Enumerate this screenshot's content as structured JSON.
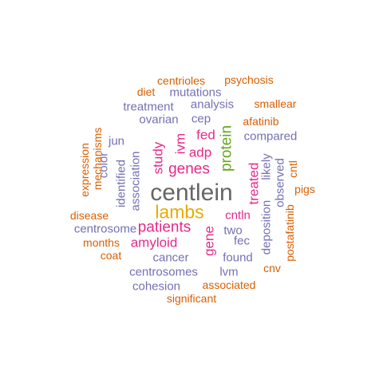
{
  "palette": {
    "orange": "#D95F02",
    "purple": "#7570B3",
    "magenta": "#E7298A",
    "green": "#66A61E",
    "gold": "#E6AB02",
    "gray": "#666666"
  },
  "words": [
    {
      "text": "centlein",
      "freq_rank": 1,
      "color": "gray"
    },
    {
      "text": "lambs",
      "freq_rank": 2,
      "color": "gold"
    },
    {
      "text": "patients",
      "freq_rank": 3,
      "color": "magenta"
    },
    {
      "text": "protein",
      "freq_rank": 3,
      "color": "green"
    },
    {
      "text": "genes",
      "freq_rank": 3,
      "color": "magenta"
    },
    {
      "text": "amyloid",
      "freq_rank": 4,
      "color": "magenta"
    },
    {
      "text": "treated",
      "freq_rank": 4,
      "color": "magenta"
    },
    {
      "text": "adp",
      "freq_rank": 4,
      "color": "magenta"
    },
    {
      "text": "fed",
      "freq_rank": 4,
      "color": "magenta"
    },
    {
      "text": "gene",
      "freq_rank": 4,
      "color": "magenta"
    },
    {
      "text": "study",
      "freq_rank": 4,
      "color": "magenta"
    },
    {
      "text": "ivm",
      "freq_rank": 4,
      "color": "magenta"
    },
    {
      "text": "cntln",
      "freq_rank": 4,
      "color": "magenta"
    },
    {
      "text": "association",
      "freq_rank": 5,
      "color": "purple"
    },
    {
      "text": "identified",
      "freq_rank": 5,
      "color": "purple"
    },
    {
      "text": "deposition",
      "freq_rank": 5,
      "color": "purple"
    },
    {
      "text": "centrosomes",
      "freq_rank": 5,
      "color": "purple"
    },
    {
      "text": "cohesion",
      "freq_rank": 5,
      "color": "purple"
    },
    {
      "text": "centrosome",
      "freq_rank": 5,
      "color": "purple"
    },
    {
      "text": "cancer",
      "freq_rank": 5,
      "color": "purple"
    },
    {
      "text": "found",
      "freq_rank": 5,
      "color": "purple"
    },
    {
      "text": "lvm",
      "freq_rank": 5,
      "color": "purple"
    },
    {
      "text": "two",
      "freq_rank": 5,
      "color": "purple"
    },
    {
      "text": "fec",
      "freq_rank": 5,
      "color": "purple"
    },
    {
      "text": "compared",
      "freq_rank": 5,
      "color": "purple"
    },
    {
      "text": "observed",
      "freq_rank": 5,
      "color": "purple"
    },
    {
      "text": "likely",
      "freq_rank": 5,
      "color": "purple"
    },
    {
      "text": "jun",
      "freq_rank": 5,
      "color": "purple"
    },
    {
      "text": "color",
      "freq_rank": 5,
      "color": "purple"
    },
    {
      "text": "cep",
      "freq_rank": 5,
      "color": "purple"
    },
    {
      "text": "ovarian",
      "freq_rank": 5,
      "color": "purple"
    },
    {
      "text": "treatment",
      "freq_rank": 5,
      "color": "purple"
    },
    {
      "text": "analysis",
      "freq_rank": 5,
      "color": "purple"
    },
    {
      "text": "mutations",
      "freq_rank": 5,
      "color": "purple"
    },
    {
      "text": "centrioles",
      "freq_rank": 6,
      "color": "orange"
    },
    {
      "text": "psychosis",
      "freq_rank": 6,
      "color": "orange"
    },
    {
      "text": "diet",
      "freq_rank": 6,
      "color": "orange"
    },
    {
      "text": "smallear",
      "freq_rank": 6,
      "color": "orange"
    },
    {
      "text": "afatinib",
      "freq_rank": 6,
      "color": "orange"
    },
    {
      "text": "cntl",
      "freq_rank": 6,
      "color": "orange"
    },
    {
      "text": "pigs",
      "freq_rank": 6,
      "color": "orange"
    },
    {
      "text": "postafatinib",
      "freq_rank": 6,
      "color": "orange"
    },
    {
      "text": "cnv",
      "freq_rank": 6,
      "color": "orange"
    },
    {
      "text": "associated",
      "freq_rank": 6,
      "color": "orange"
    },
    {
      "text": "significant",
      "freq_rank": 6,
      "color": "orange"
    },
    {
      "text": "coat",
      "freq_rank": 6,
      "color": "orange"
    },
    {
      "text": "months",
      "freq_rank": 6,
      "color": "orange"
    },
    {
      "text": "disease",
      "freq_rank": 6,
      "color": "orange"
    },
    {
      "text": "expression",
      "freq_rank": 6,
      "color": "orange"
    },
    {
      "text": "mechanisms",
      "freq_rank": 6,
      "color": "orange"
    }
  ]
}
